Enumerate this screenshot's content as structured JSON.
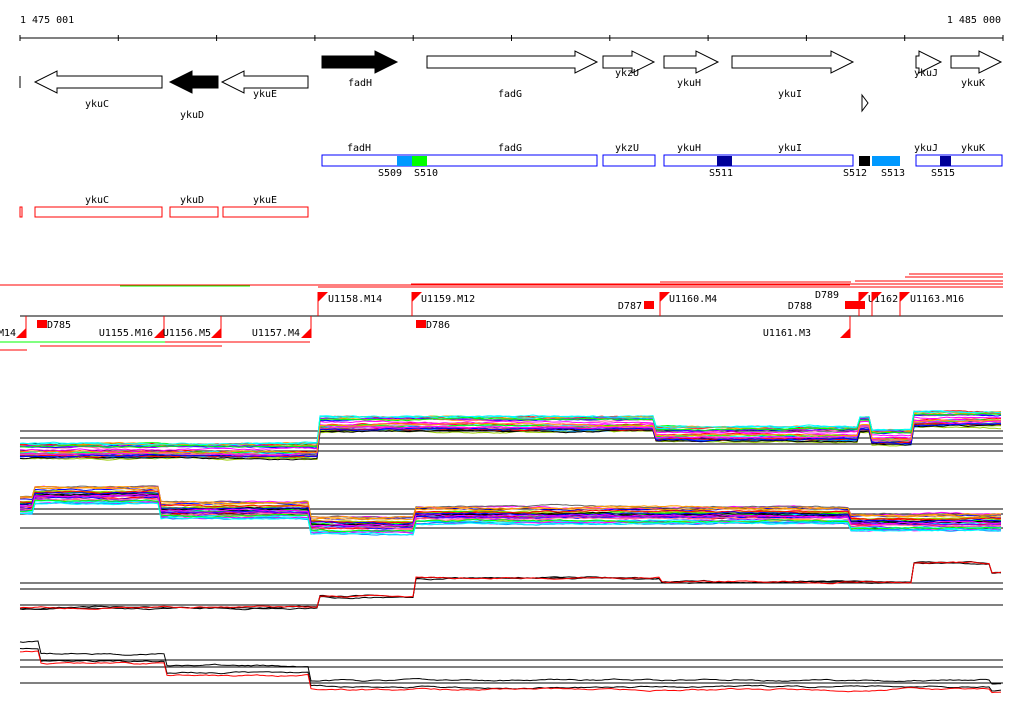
{
  "ruler": {
    "start_label": "1 475 001",
    "end_label": "1 485 000"
  },
  "genes": [
    {
      "name": "",
      "strand": "-",
      "fill": "#ffffff"
    },
    {
      "name": "ykuC",
      "strand": "-",
      "fill": "#ffffff"
    },
    {
      "name": "ykuD",
      "strand": "-",
      "fill": "#000000"
    },
    {
      "name": "ykuE",
      "strand": "-",
      "fill": "#ffffff"
    },
    {
      "name": "fadH",
      "strand": "+",
      "fill": "#000000"
    },
    {
      "name": "fadG",
      "strand": "+",
      "fill": "#ffffff"
    },
    {
      "name": "ykzU",
      "strand": "+",
      "fill": "#ffffff"
    },
    {
      "name": "ykuH",
      "strand": "+",
      "fill": "#ffffff"
    },
    {
      "name": "ykuI",
      "strand": "+",
      "fill": "#ffffff"
    },
    {
      "name": "ykuJ",
      "strand": "+",
      "fill": "#ffffff"
    },
    {
      "name": "ykuK",
      "strand": "+",
      "fill": "#ffffff"
    }
  ],
  "segments_plus": {
    "boxes": [
      "fadH",
      "fadG",
      "ykzU",
      "ykuH",
      "ykuI",
      "ykuJ",
      "ykuK"
    ],
    "sites": [
      {
        "label": "S509",
        "color": "#0099ff"
      },
      {
        "label": "S510",
        "color": "#00ff00"
      },
      {
        "label": "S511",
        "color": "#000099"
      },
      {
        "label": "S512",
        "color": "#000000"
      },
      {
        "label": "S513",
        "color": "#0099ff"
      },
      {
        "label": "S515",
        "color": "#000099"
      }
    ]
  },
  "segments_minus": [
    "ykuC",
    "ykuD",
    "ykuE"
  ],
  "markers": [
    {
      "label": "M14"
    },
    {
      "label": "D785"
    },
    {
      "label": "U1155.M16"
    },
    {
      "label": "U1156.M5"
    },
    {
      "label": "U1157.M4"
    },
    {
      "label": "U1158.M14"
    },
    {
      "label": "U1159.M12"
    },
    {
      "label": "D786"
    },
    {
      "label": "D787"
    },
    {
      "label": "U1160.M4"
    },
    {
      "label": "D788"
    },
    {
      "label": "D789"
    },
    {
      "label": "U1161.M3"
    },
    {
      "label": "U1162"
    },
    {
      "label": "U1163.M16"
    }
  ],
  "colors": {
    "minus_strand": "#ff0000",
    "plus_strand": "#0000ff",
    "marker": "#ff0000"
  }
}
